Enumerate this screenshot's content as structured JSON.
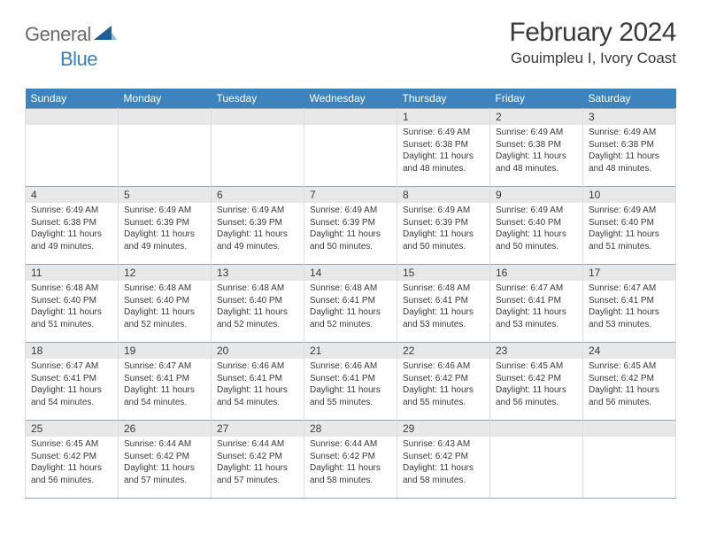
{
  "brand": {
    "general": "General",
    "blue": "Blue"
  },
  "title": "February 2024",
  "location": "Gouimpleu I, Ivory Coast",
  "colors": {
    "header_bg": "#3d84bf",
    "header_text": "#ffffff",
    "daynum_bg": "#e8e8e8",
    "daynum_border_top": "#9aa6af",
    "cell_border": "#dcdcdc",
    "text": "#3a3a3a",
    "logo_gray": "#6b6b6b",
    "logo_blue": "#3a7fb8",
    "page_bg": "#ffffff"
  },
  "typography": {
    "month_title_pt": 30,
    "location_pt": 17,
    "weekday_pt": 12,
    "daynum_pt": 12,
    "body_pt": 10,
    "logo_pt": 22,
    "family": "Arial"
  },
  "weekdays": [
    "Sunday",
    "Monday",
    "Tuesday",
    "Wednesday",
    "Thursday",
    "Friday",
    "Saturday"
  ],
  "grid": {
    "cols": 7,
    "rows": 5,
    "first_day_col": 4,
    "days_in_month": 29
  },
  "days": {
    "1": {
      "sunrise": "6:49 AM",
      "sunset": "6:38 PM",
      "daylight": "11 hours and 48 minutes."
    },
    "2": {
      "sunrise": "6:49 AM",
      "sunset": "6:38 PM",
      "daylight": "11 hours and 48 minutes."
    },
    "3": {
      "sunrise": "6:49 AM",
      "sunset": "6:38 PM",
      "daylight": "11 hours and 48 minutes."
    },
    "4": {
      "sunrise": "6:49 AM",
      "sunset": "6:38 PM",
      "daylight": "11 hours and 49 minutes."
    },
    "5": {
      "sunrise": "6:49 AM",
      "sunset": "6:39 PM",
      "daylight": "11 hours and 49 minutes."
    },
    "6": {
      "sunrise": "6:49 AM",
      "sunset": "6:39 PM",
      "daylight": "11 hours and 49 minutes."
    },
    "7": {
      "sunrise": "6:49 AM",
      "sunset": "6:39 PM",
      "daylight": "11 hours and 50 minutes."
    },
    "8": {
      "sunrise": "6:49 AM",
      "sunset": "6:39 PM",
      "daylight": "11 hours and 50 minutes."
    },
    "9": {
      "sunrise": "6:49 AM",
      "sunset": "6:40 PM",
      "daylight": "11 hours and 50 minutes."
    },
    "10": {
      "sunrise": "6:49 AM",
      "sunset": "6:40 PM",
      "daylight": "11 hours and 51 minutes."
    },
    "11": {
      "sunrise": "6:48 AM",
      "sunset": "6:40 PM",
      "daylight": "11 hours and 51 minutes."
    },
    "12": {
      "sunrise": "6:48 AM",
      "sunset": "6:40 PM",
      "daylight": "11 hours and 52 minutes."
    },
    "13": {
      "sunrise": "6:48 AM",
      "sunset": "6:40 PM",
      "daylight": "11 hours and 52 minutes."
    },
    "14": {
      "sunrise": "6:48 AM",
      "sunset": "6:41 PM",
      "daylight": "11 hours and 52 minutes."
    },
    "15": {
      "sunrise": "6:48 AM",
      "sunset": "6:41 PM",
      "daylight": "11 hours and 53 minutes."
    },
    "16": {
      "sunrise": "6:47 AM",
      "sunset": "6:41 PM",
      "daylight": "11 hours and 53 minutes."
    },
    "17": {
      "sunrise": "6:47 AM",
      "sunset": "6:41 PM",
      "daylight": "11 hours and 53 minutes."
    },
    "18": {
      "sunrise": "6:47 AM",
      "sunset": "6:41 PM",
      "daylight": "11 hours and 54 minutes."
    },
    "19": {
      "sunrise": "6:47 AM",
      "sunset": "6:41 PM",
      "daylight": "11 hours and 54 minutes."
    },
    "20": {
      "sunrise": "6:46 AM",
      "sunset": "6:41 PM",
      "daylight": "11 hours and 54 minutes."
    },
    "21": {
      "sunrise": "6:46 AM",
      "sunset": "6:41 PM",
      "daylight": "11 hours and 55 minutes."
    },
    "22": {
      "sunrise": "6:46 AM",
      "sunset": "6:42 PM",
      "daylight": "11 hours and 55 minutes."
    },
    "23": {
      "sunrise": "6:45 AM",
      "sunset": "6:42 PM",
      "daylight": "11 hours and 56 minutes."
    },
    "24": {
      "sunrise": "6:45 AM",
      "sunset": "6:42 PM",
      "daylight": "11 hours and 56 minutes."
    },
    "25": {
      "sunrise": "6:45 AM",
      "sunset": "6:42 PM",
      "daylight": "11 hours and 56 minutes."
    },
    "26": {
      "sunrise": "6:44 AM",
      "sunset": "6:42 PM",
      "daylight": "11 hours and 57 minutes."
    },
    "27": {
      "sunrise": "6:44 AM",
      "sunset": "6:42 PM",
      "daylight": "11 hours and 57 minutes."
    },
    "28": {
      "sunrise": "6:44 AM",
      "sunset": "6:42 PM",
      "daylight": "11 hours and 58 minutes."
    },
    "29": {
      "sunrise": "6:43 AM",
      "sunset": "6:42 PM",
      "daylight": "11 hours and 58 minutes."
    }
  },
  "labels": {
    "sunrise_prefix": "Sunrise: ",
    "sunset_prefix": "Sunset: ",
    "daylight_prefix": "Daylight: "
  }
}
